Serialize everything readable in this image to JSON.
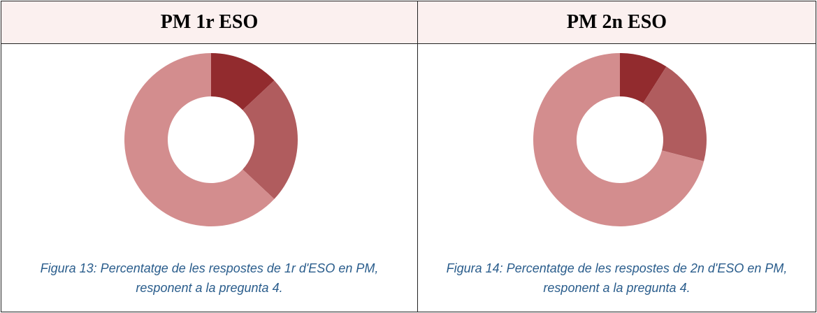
{
  "chart_data": [
    {
      "type": "pie",
      "donut": true,
      "title": "PM 1r ESO",
      "values": [
        13,
        24,
        63
      ],
      "colors": [
        "#922b2e",
        "#b05c5e",
        "#d38d8e"
      ],
      "caption": "Figura 13: Percentatge de les respostes de 1r d'ESO en PM, responent a la pregunta 4."
    },
    {
      "type": "pie",
      "donut": true,
      "title": "PM 2n ESO",
      "values": [
        9,
        20,
        71
      ],
      "colors": [
        "#922b2e",
        "#b05c5e",
        "#d38d8e"
      ],
      "caption": "Figura 14: Percentatge de les respostes de 2n d'ESO en PM, responent a la pregunta 4."
    }
  ]
}
